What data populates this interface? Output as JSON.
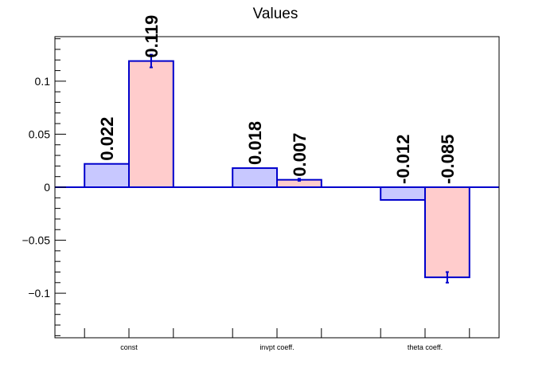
{
  "chart_data": {
    "type": "bar",
    "title": "Values",
    "xlabel": "",
    "ylabel": "",
    "categories": [
      "const",
      "invpt coeff.",
      "theta coeff."
    ],
    "series": [
      {
        "values": [
          0.022,
          0.018,
          -0.012
        ],
        "labels": [
          "0.022",
          "0.018",
          "-0.012"
        ],
        "errors": [
          0,
          0,
          0
        ],
        "color": "#c8c8ff"
      },
      {
        "values": [
          0.119,
          0.007,
          -0.085
        ],
        "labels": [
          "0.119",
          "0.007",
          "-0.085"
        ],
        "errors": [
          0.006,
          0.001,
          0.005
        ],
        "color": "#ffcccc"
      }
    ],
    "ylim": [
      -0.142,
      0.142
    ],
    "yticks": [
      -0.1,
      -0.05,
      0,
      0.05,
      0.1
    ],
    "ytick_labels": [
      "−0.1",
      "−0.05",
      "0",
      "0.05",
      "0.1"
    ],
    "yminor_step": 0.01,
    "grid": false,
    "legend": "none",
    "bar_outline_color": "#0000cc",
    "zero_line_color": "#0000cc",
    "axis_color": "#000000"
  }
}
